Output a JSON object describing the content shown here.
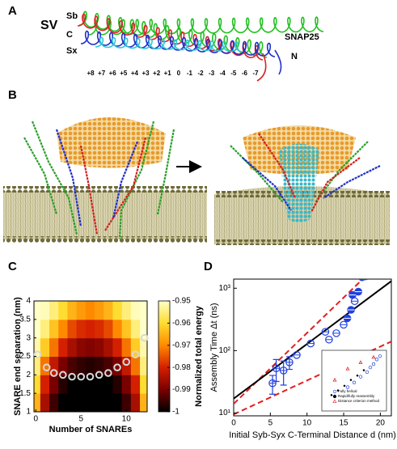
{
  "panel_labels": [
    "A",
    "B",
    "C",
    "D"
  ],
  "panel_a": {
    "sv": "SV",
    "sb": {
      "label": "Sb",
      "color": "#e0202a"
    },
    "sx": {
      "label": "Sx",
      "color": "#2030c8"
    },
    "snap25": {
      "label": "SNAP25",
      "color": "#22c022"
    },
    "c_terminal": "C",
    "n_terminal": "N",
    "layers": [
      "+8",
      "+7",
      "+6",
      "+5",
      "+4",
      "+3",
      "+2",
      "+1",
      "0",
      "-1",
      "-2",
      "-3",
      "-4",
      "-5",
      "-6",
      "-7"
    ]
  },
  "chart_data": [
    {
      "type": "heatmap",
      "xlabel": "Number of SNAREs",
      "ylabel": "SNARE end separation (nm)",
      "colorbar_label": "Normalized total energy",
      "xlim": [
        -0.2,
        12.3
      ],
      "ylim": [
        1,
        4
      ],
      "xticks": [
        0,
        5,
        10
      ],
      "yticks": [
        1,
        1.5,
        2,
        2.5,
        3,
        3.5,
        4
      ],
      "zlim": [
        -1,
        -0.95
      ],
      "zticks": [
        -1,
        -0.99,
        -0.98,
        -0.97,
        -0.96,
        -0.95
      ],
      "colormap": [
        "#000000",
        "#7a0000",
        "#d42000",
        "#ff8a00",
        "#ffdc30",
        "#ffffc8"
      ],
      "cells_x": [
        0,
        1,
        2,
        3,
        4,
        5,
        6,
        7,
        8,
        9,
        10,
        11,
        12
      ],
      "cells_y": [
        1.25,
        1.75,
        2.25,
        2.75,
        3.25,
        3.75
      ],
      "z": [
        [
          -0.965,
          -0.985,
          -0.995,
          -1,
          -1,
          -1,
          -1,
          -1,
          -1,
          -1,
          -0.995,
          -0.985,
          -0.965
        ],
        [
          -0.96,
          -0.98,
          -0.99,
          -0.997,
          -1,
          -1,
          -1,
          -1,
          -1,
          -0.997,
          -0.99,
          -0.98,
          -0.96
        ],
        [
          -0.955,
          -0.972,
          -0.982,
          -0.99,
          -0.994,
          -0.996,
          -0.997,
          -0.996,
          -0.994,
          -0.99,
          -0.982,
          -0.972,
          -0.955
        ],
        [
          -0.952,
          -0.962,
          -0.972,
          -0.98,
          -0.985,
          -0.988,
          -0.989,
          -0.988,
          -0.985,
          -0.98,
          -0.972,
          -0.962,
          -0.952
        ],
        [
          -0.95,
          -0.955,
          -0.963,
          -0.97,
          -0.976,
          -0.979,
          -0.98,
          -0.979,
          -0.976,
          -0.97,
          -0.963,
          -0.955,
          -0.95
        ],
        [
          -0.95,
          -0.951,
          -0.955,
          -0.96,
          -0.965,
          -0.968,
          -0.97,
          -0.968,
          -0.965,
          -0.96,
          -0.955,
          -0.951,
          -0.95
        ]
      ],
      "points": {
        "color": "#d8d8d8",
        "x": [
          0.2,
          1.2,
          2,
          3,
          4,
          5,
          6,
          7,
          8,
          9,
          10,
          11,
          12
        ],
        "values": [
          2.55,
          2.2,
          2.05,
          2.0,
          1.95,
          1.95,
          1.95,
          2.0,
          2.05,
          2.2,
          2.35,
          2.55,
          3.0
        ]
      }
    },
    {
      "type": "scatter",
      "xlabel": "Initial Syb-Syx C-Terminal Distance d (nm)",
      "ylabel": "Assembly Time Δt (ns)",
      "xlim": [
        0,
        21.5
      ],
      "ylim": [
        9,
        1400
      ],
      "log_y": true,
      "xticks": [
        0,
        5,
        10,
        15,
        20
      ],
      "yticks": [
        {
          "value": 10,
          "label": "10¹"
        },
        {
          "value": 100,
          "label": "10²"
        },
        {
          "value": 1000,
          "label": "10³"
        }
      ],
      "lines": [
        {
          "color": "#e02020",
          "dashed": true,
          "x": [
            0,
            17.6
          ],
          "values": [
            14,
            1400
          ]
        },
        {
          "color": "#000000",
          "dashed": false,
          "x": [
            0,
            21.5
          ],
          "values": [
            17,
            1300
          ]
        },
        {
          "color": "#e02020",
          "dashed": true,
          "x": [
            0,
            21.5
          ],
          "values": [
            9.5,
            140
          ]
        }
      ],
      "series": [
        {
          "color": "#2040e0",
          "filled": false,
          "x": [
            5.3,
            5.8,
            6.8,
            7.6,
            8.6,
            10.5,
            12.5,
            13.0,
            14.0,
            15.0,
            16.5
          ],
          "values": [
            30,
            52,
            48,
            65,
            85,
            130,
            200,
            150,
            190,
            260,
            620
          ],
          "errors": [
            10,
            20,
            20,
            15,
            null,
            null,
            null,
            null,
            null,
            null,
            null
          ]
        },
        {
          "color": "#2040e0",
          "filled": true,
          "x": [
            15.5,
            16.0,
            16.2,
            17.0,
            17.5,
            18.0
          ],
          "values": [
            330,
            450,
            780,
            880,
            1500,
            1550
          ]
        }
      ]
    },
    {
      "type": "scatter",
      "xlim": [
        0,
        20
      ],
      "ylim": [
        1,
        200
      ],
      "log_y": true,
      "series": [
        {
          "name": "Fully helical",
          "color": "#2040e0",
          "marker": "circle",
          "x": [
            8,
            10,
            12,
            14,
            15,
            16,
            17,
            18
          ],
          "values": [
            8,
            12,
            20,
            30,
            45,
            60,
            90,
            120
          ]
        },
        {
          "name": "Rapid/fully reassembly",
          "color": "#000000",
          "marker": "dot",
          "x": [
            3,
            5,
            7,
            9,
            11,
            13
          ],
          "values": [
            4,
            6,
            9,
            15,
            22,
            35
          ]
        },
        {
          "name": "Distance criterion method",
          "color": "#e02020",
          "marker": "triangle",
          "x": [
            4,
            8,
            12,
            16
          ],
          "values": [
            15,
            40,
            70,
            110
          ]
        }
      ]
    }
  ]
}
